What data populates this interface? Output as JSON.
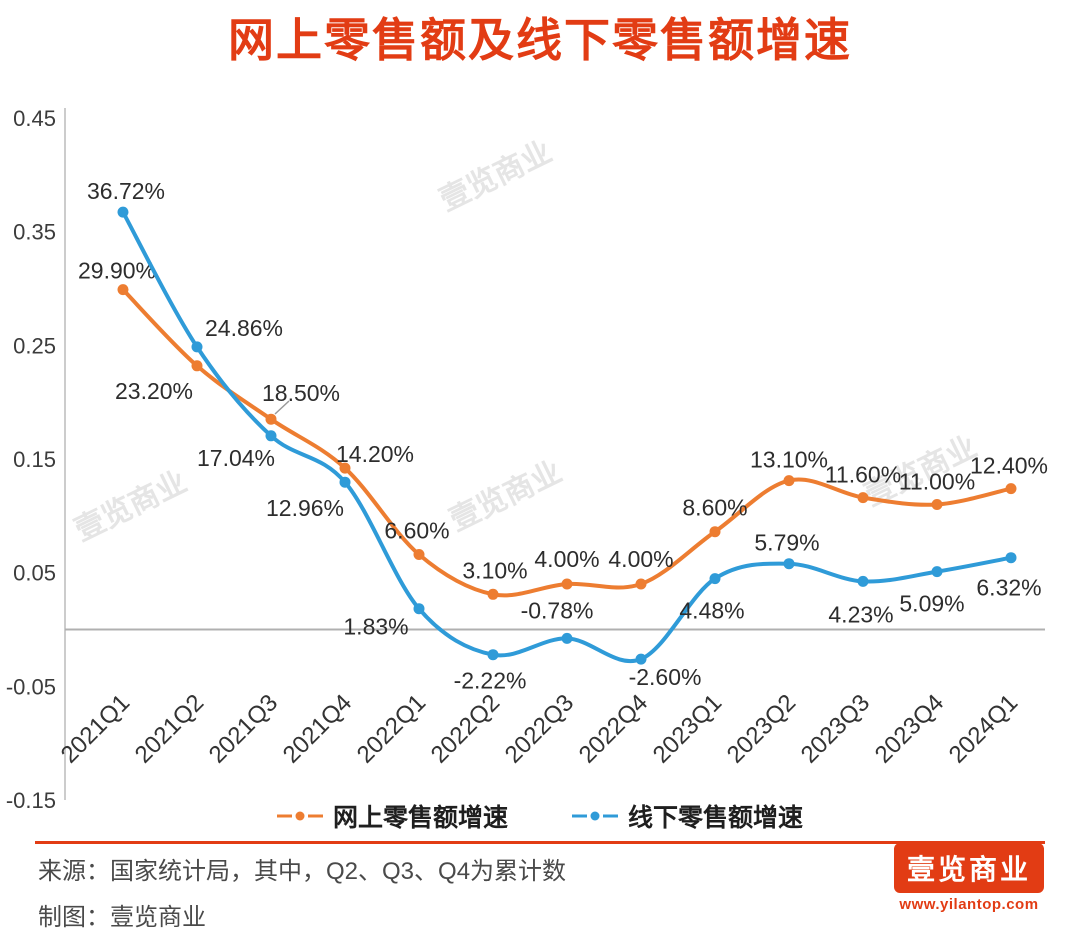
{
  "chart_data": {
    "type": "line",
    "title": "网上零售额及线下零售额增速",
    "categories": [
      "2021Q1",
      "2021Q2",
      "2021Q3",
      "2021Q4",
      "2022Q1",
      "2022Q2",
      "2022Q3",
      "2022Q4",
      "2023Q1",
      "2023Q2",
      "2023Q3",
      "2023Q4",
      "2024Q1"
    ],
    "series": [
      {
        "name": "网上零售额增速",
        "color": "#ED7D31",
        "values": [
          0.299,
          0.232,
          0.185,
          0.142,
          0.066,
          0.031,
          0.04,
          0.04,
          0.086,
          0.131,
          0.116,
          0.11,
          0.124
        ],
        "labels": [
          "29.90%",
          "23.20%",
          "18.50%",
          "14.20%",
          "6.60%",
          "3.10%",
          "4.00%",
          "4.00%",
          "8.60%",
          "13.10%",
          "11.60%",
          "11.00%",
          "12.40%"
        ]
      },
      {
        "name": "线下零售额增速",
        "color": "#2F9BD8",
        "values": [
          0.3672,
          0.2486,
          0.1704,
          0.1296,
          0.0183,
          -0.0222,
          -0.0078,
          -0.026,
          0.0448,
          0.0579,
          0.0423,
          0.0509,
          0.0632
        ],
        "labels": [
          "36.72%",
          "24.86%",
          "17.04%",
          "12.96%",
          "1.83%",
          "-2.22%",
          "-0.78%",
          "-2.60%",
          "4.48%",
          "5.79%",
          "4.23%",
          "5.09%",
          "6.32%"
        ]
      }
    ],
    "ylim": [
      -0.15,
      0.45
    ],
    "yticks": [
      0.45,
      0.35,
      0.25,
      0.15,
      0.05,
      -0.05,
      -0.15
    ],
    "ytick_labels": [
      "0.45",
      "0.35",
      "0.25",
      "0.15",
      "0.05",
      "-0.05",
      "-0.15"
    ],
    "xlabel": "",
    "ylabel": "",
    "grid": false,
    "zero_line": true,
    "legend_position": "bottom"
  },
  "watermark": {
    "text": "壹览商业"
  },
  "footer": {
    "source_line": "来源：国家统计局，其中，Q2、Q3、Q4为累计数",
    "credit_line": "制图：壹览商业"
  },
  "branding": {
    "logo_text": "壹览商业",
    "website": "www.yilantop.com",
    "brand_color": "#E23C14"
  }
}
